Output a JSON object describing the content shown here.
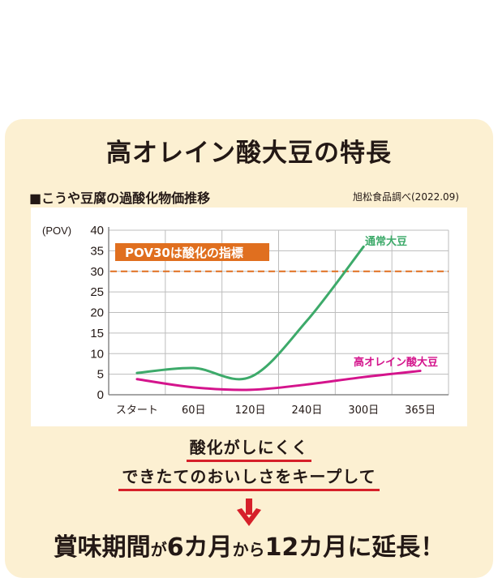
{
  "header": {
    "title": "高オレイン酸大豆の特長",
    "subtitle": "■こうや豆腐の過酸化物価推移",
    "source": "旭松食品調べ(2022.09)"
  },
  "chart_data": {
    "type": "line",
    "title": "こうや豆腐の過酸化物価推移",
    "ylabel": "(POV)",
    "xlabel": "",
    "ylim": [
      0,
      40
    ],
    "yticks": [
      "40",
      "35",
      "30",
      "25",
      "20",
      "15",
      "10",
      "5",
      "0"
    ],
    "categories": [
      "スタート",
      "60日",
      "120日",
      "240日",
      "300日",
      "365日"
    ],
    "grid": true,
    "series": [
      {
        "name": "通常大豆",
        "color": "#3daa6a",
        "values": [
          5.3,
          6.5,
          4.3,
          18,
          36,
          null
        ]
      },
      {
        "name": "高オレイン酸大豆",
        "color": "#d4148c",
        "values": [
          3.8,
          1.8,
          1.2,
          2.5,
          4.3,
          5.8
        ]
      }
    ],
    "annotations": [
      {
        "text": "POV30は酸化の指標",
        "y": 30,
        "style": "dashed",
        "color": "#e06f1f"
      }
    ],
    "legend_position": "inline labels"
  },
  "chart_labels": {
    "y_unit": "(POV)",
    "threshold_label": "POV30は酸化の指標",
    "series_normal": "通常大豆",
    "series_high_oleic": "高オレイン酸大豆"
  },
  "message": {
    "line1": "酸化がしにくく",
    "line2": "できたてのおいしさをキープして",
    "result_parts": [
      "賞味期間",
      "が",
      "6カ月",
      "から",
      "12カ月",
      "に延長！"
    ]
  },
  "colors": {
    "panel_bg": "#fcf0d2",
    "normal_soy": "#3daa6a",
    "high_oleic_soy": "#d4148c",
    "threshold": "#e06f1f",
    "underline": "#d6202a",
    "arrow": "#d6202a"
  }
}
